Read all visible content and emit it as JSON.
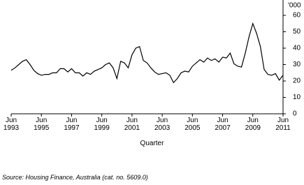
{
  "chart_data": {
    "type": "line",
    "y_unit_label": "'000",
    "x_label": "Quarter",
    "source": "Source: Housing Finance, Australia (cat. no. 5609.0)",
    "categories": [
      "Jun\n1993",
      null,
      null,
      null,
      null,
      null,
      null,
      null,
      "Jun\n1995",
      null,
      null,
      null,
      null,
      null,
      null,
      null,
      "Jun\n1997",
      null,
      null,
      null,
      null,
      null,
      null,
      null,
      "Jun\n1999",
      null,
      null,
      null,
      null,
      null,
      null,
      null,
      "Jun\n2001",
      null,
      null,
      null,
      null,
      null,
      null,
      null,
      "Jun\n2003",
      null,
      null,
      null,
      null,
      null,
      null,
      null,
      "Jun\n2005",
      null,
      null,
      null,
      null,
      null,
      null,
      null,
      "Jun\n2007",
      null,
      null,
      null,
      null,
      null,
      null,
      null,
      "Jun\n2009",
      null,
      null,
      null,
      null,
      null,
      null,
      null,
      "Jun\n2011"
    ],
    "series": [
      {
        "color": "#000000",
        "values": [
          26.5,
          28,
          30,
          32,
          33,
          30,
          26.5,
          24.5,
          23.5,
          24,
          24,
          25,
          25,
          27.5,
          27.5,
          25.5,
          27.5,
          25,
          25,
          23,
          25,
          24,
          26,
          27,
          28,
          30,
          31,
          28,
          21.5,
          32,
          31,
          28,
          36,
          40,
          41,
          32.5,
          31,
          28,
          25.5,
          24,
          24.5,
          25,
          23.5,
          19,
          21.5,
          25,
          26,
          25.5,
          29,
          31,
          33,
          31.5,
          34,
          32.5,
          33.5,
          31.5,
          34.5,
          34,
          37,
          30.5,
          29,
          28.5,
          37,
          47,
          55,
          49,
          41,
          27,
          24,
          23.5,
          24.5,
          20.5,
          23.5
        ]
      }
    ],
    "ylim": [
      0,
      70
    ],
    "yticks": [
      0,
      10,
      20,
      30,
      40,
      50,
      60
    ],
    "y_axis_side": "right"
  }
}
